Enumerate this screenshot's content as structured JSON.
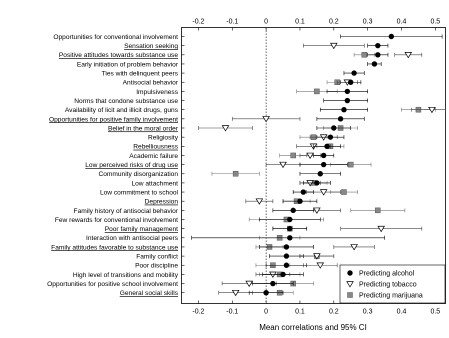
{
  "chart_data": {
    "type": "scatter",
    "xlabel": "Mean correlations and 95% CI",
    "ylabel": "",
    "xlim": [
      -0.25,
      0.53
    ],
    "xticks": [
      -0.2,
      -0.1,
      0,
      0.1,
      0.2,
      0.3,
      0.4,
      0.5
    ],
    "xtick_labels": [
      "-0.2",
      "-0.1",
      "0",
      "0.1",
      "0.2",
      "0.3",
      "0.4",
      "0.5"
    ],
    "reference_line_x": 0,
    "grid": false,
    "legend_position": "bottom-right",
    "categories": [
      {
        "label": "Opportunities for conventional involvement",
        "underline": false
      },
      {
        "label": "Sensation seeking",
        "underline": true
      },
      {
        "label": "Positive attitudes towards substance use",
        "underline": true
      },
      {
        "label": "Early initiation of problem behavior",
        "underline": false
      },
      {
        "label": "Ties with delinquent peers",
        "underline": false
      },
      {
        "label": "Antisocial behavior",
        "underline": false
      },
      {
        "label": "Impulsiveness",
        "underline": false
      },
      {
        "label": "Norms that condone substance use",
        "underline": false
      },
      {
        "label": "Availability of licit and illicit drugs, guns",
        "underline": false
      },
      {
        "label": "Opportunities for positive family involvement",
        "underline": true
      },
      {
        "label": "Belief in the moral order",
        "underline": true
      },
      {
        "label": "Religiosity",
        "underline": false
      },
      {
        "label": "Rebelliousness",
        "underline": true
      },
      {
        "label": "Academic failure",
        "underline": false
      },
      {
        "label": "Low perceived risks of drug use",
        "underline": true
      },
      {
        "label": "Community disorganization",
        "underline": false
      },
      {
        "label": "Low attachment",
        "underline": false
      },
      {
        "label": "Low commitment to school",
        "underline": false
      },
      {
        "label": "Depression",
        "underline": true
      },
      {
        "label": "Family history of antisocial behavior",
        "underline": false
      },
      {
        "label": "Few rewards for conventional involvement",
        "underline": false
      },
      {
        "label": "Poor family management",
        "underline": true
      },
      {
        "label": "Interaction with antisocial peers",
        "underline": false
      },
      {
        "label": "Family attitudes favorable to substance use",
        "underline": true
      },
      {
        "label": "Family conflict",
        "underline": false
      },
      {
        "label": "Poor discipline",
        "underline": false
      },
      {
        "label": "High level of transitions and mobility",
        "underline": false
      },
      {
        "label": "Opportunities for positive school involvement",
        "underline": false
      },
      {
        "label": "General social skills",
        "underline": true
      }
    ],
    "series": [
      {
        "name": "Predicting alcohol",
        "marker": "circle",
        "values": [
          [
            0.37,
            0.22,
            0.52
          ],
          [
            0.33,
            0.3,
            0.36
          ],
          [
            0.33,
            0.3,
            0.36
          ],
          [
            0.32,
            0.3,
            0.34
          ],
          [
            0.26,
            0.23,
            0.29
          ],
          [
            0.25,
            0.22,
            0.28
          ],
          [
            0.24,
            0.18,
            0.3
          ],
          [
            0.24,
            0.17,
            0.3
          ],
          [
            0.23,
            0.16,
            0.3
          ],
          [
            0.22,
            0.15,
            0.29
          ],
          [
            0.2,
            0.15,
            0.25
          ],
          [
            0.19,
            0.15,
            0.23
          ],
          [
            0.18,
            0.14,
            0.22
          ],
          [
            0.17,
            0.14,
            0.2
          ],
          [
            0.17,
            0.1,
            0.24
          ],
          [
            0.16,
            0.1,
            0.22
          ],
          [
            0.15,
            0.11,
            0.19
          ],
          [
            0.11,
            0.08,
            0.14
          ],
          [
            0.1,
            0.05,
            0.15
          ],
          [
            0.08,
            0.02,
            0.14
          ],
          [
            0.07,
            -0.02,
            0.16
          ],
          [
            0.07,
            0.02,
            0.12
          ],
          [
            0.07,
            -0.22,
            0.35
          ],
          [
            0.06,
            -0.02,
            0.14
          ],
          [
            0.06,
            0.01,
            0.11
          ],
          [
            0.06,
            0.0,
            0.12
          ],
          [
            0.05,
            -0.01,
            0.11
          ],
          [
            0.02,
            -0.04,
            0.08
          ],
          [
            0.0,
            -0.05,
            0.05
          ]
        ]
      },
      {
        "name": "Predicting tobacco",
        "marker": "triangle",
        "values": [
          null,
          [
            0.2,
            0.11,
            0.29
          ],
          [
            0.42,
            0.38,
            0.46
          ],
          null,
          null,
          [
            0.24,
            0.21,
            0.27
          ],
          null,
          null,
          [
            0.49,
            0.43,
            0.53
          ],
          [
            0.0,
            -0.1,
            0.1
          ],
          [
            -0.12,
            -0.2,
            -0.04
          ],
          [
            0.17,
            0.13,
            0.21
          ],
          [
            0.14,
            0.09,
            0.19
          ],
          [
            0.13,
            0.1,
            0.16
          ],
          [
            0.05,
            0.0,
            0.1
          ],
          null,
          [
            0.13,
            0.1,
            0.16
          ],
          [
            0.17,
            0.12,
            0.22
          ],
          [
            -0.02,
            -0.06,
            0.02
          ],
          [
            0.15,
            0.08,
            0.22
          ],
          null,
          [
            0.34,
            0.22,
            0.46
          ],
          null,
          [
            0.26,
            0.2,
            0.32
          ],
          [
            0.15,
            0.1,
            0.2
          ],
          [
            0.16,
            0.11,
            0.21
          ],
          [
            0.02,
            -0.03,
            0.07
          ],
          [
            -0.05,
            -0.13,
            0.03
          ],
          [
            -0.09,
            -0.14,
            -0.04
          ]
        ]
      },
      {
        "name": "Predicting marijuana",
        "marker": "square",
        "values": [
          null,
          null,
          [
            0.29,
            0.26,
            0.32
          ],
          null,
          null,
          [
            0.21,
            0.18,
            0.24
          ],
          [
            0.15,
            0.09,
            0.21
          ],
          null,
          [
            0.45,
            0.4,
            0.5
          ],
          null,
          [
            0.22,
            0.17,
            0.27
          ],
          [
            0.14,
            0.1,
            0.18
          ],
          [
            0.19,
            0.15,
            0.23
          ],
          [
            0.08,
            0.04,
            0.12
          ],
          [
            0.25,
            0.19,
            0.31
          ],
          [
            -0.09,
            -0.16,
            -0.02
          ],
          [
            0.14,
            0.1,
            0.18
          ],
          [
            0.23,
            0.19,
            0.27
          ],
          [
            0.09,
            0.05,
            0.13
          ],
          [
            0.33,
            0.25,
            0.41
          ],
          [
            0.06,
            -0.05,
            0.17
          ],
          [
            0.07,
            0.02,
            0.12
          ],
          [
            0.04,
            -0.02,
            0.1
          ],
          [
            0.01,
            -0.03,
            0.05
          ],
          [
            0.15,
            0.1,
            0.2
          ],
          [
            0.02,
            -0.03,
            0.07
          ],
          [
            0.04,
            -0.02,
            0.1
          ],
          [
            0.08,
            0.02,
            0.14
          ],
          [
            0.04,
            0.0,
            0.08
          ]
        ]
      }
    ]
  }
}
